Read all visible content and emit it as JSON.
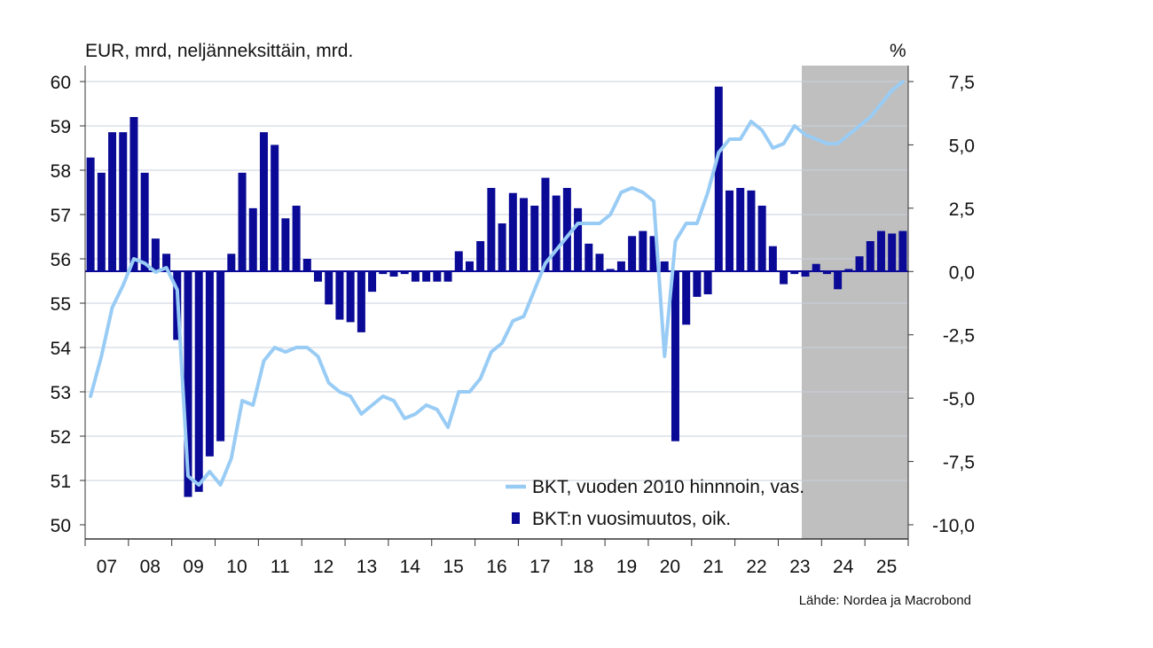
{
  "chart_data": {
    "type": "bar+line",
    "title": "",
    "left_axis_label": "EUR, mrd, neljänneksittäin, mrd.",
    "right_axis_label": "%",
    "left_ylim": [
      50,
      60
    ],
    "left_ticks": [
      "50",
      "51",
      "52",
      "53",
      "54",
      "55",
      "56",
      "57",
      "58",
      "59",
      "60"
    ],
    "right_ylim": [
      -10.0,
      7.5
    ],
    "right_ticks": [
      "-10,0",
      "-7,5",
      "-5,0",
      "-2,5",
      "0,0",
      "2,5",
      "5,0",
      "7,5"
    ],
    "x_labels": [
      "07",
      "08",
      "09",
      "10",
      "11",
      "12",
      "13",
      "14",
      "15",
      "16",
      "17",
      "18",
      "19",
      "20",
      "21",
      "22",
      "23",
      "24",
      "25"
    ],
    "forecast_shading": {
      "from": "2023Q1",
      "to": "2025Q4",
      "color": "#bfbfbf"
    },
    "quarters": [
      "2007Q1",
      "2007Q2",
      "2007Q3",
      "2007Q4",
      "2008Q1",
      "2008Q2",
      "2008Q3",
      "2008Q4",
      "2009Q1",
      "2009Q2",
      "2009Q3",
      "2009Q4",
      "2010Q1",
      "2010Q2",
      "2010Q3",
      "2010Q4",
      "2011Q1",
      "2011Q2",
      "2011Q3",
      "2011Q4",
      "2012Q1",
      "2012Q2",
      "2012Q3",
      "2012Q4",
      "2013Q1",
      "2013Q2",
      "2013Q3",
      "2013Q4",
      "2014Q1",
      "2014Q2",
      "2014Q3",
      "2014Q4",
      "2015Q1",
      "2015Q2",
      "2015Q3",
      "2015Q4",
      "2016Q1",
      "2016Q2",
      "2016Q3",
      "2016Q4",
      "2017Q1",
      "2017Q2",
      "2017Q3",
      "2017Q4",
      "2018Q1",
      "2018Q2",
      "2018Q3",
      "2018Q4",
      "2019Q1",
      "2019Q2",
      "2019Q3",
      "2019Q4",
      "2020Q1",
      "2020Q2",
      "2020Q3",
      "2020Q4",
      "2021Q1",
      "2021Q2",
      "2021Q3",
      "2021Q4",
      "2022Q1",
      "2022Q2",
      "2022Q3",
      "2022Q4",
      "2023Q1",
      "2023Q2",
      "2023Q3",
      "2023Q4",
      "2024Q1",
      "2024Q2",
      "2024Q3",
      "2024Q4",
      "2025Q1",
      "2025Q2",
      "2025Q3",
      "2025Q4"
    ],
    "series": [
      {
        "name": "BKT, vuoden 2010 hinnnoin, vas.",
        "type": "line",
        "axis": "left",
        "color": "#99ccf5",
        "values": [
          52.9,
          53.8,
          54.9,
          55.4,
          56.0,
          55.9,
          55.7,
          55.8,
          55.3,
          51.1,
          50.9,
          51.2,
          50.9,
          51.5,
          52.8,
          52.7,
          53.7,
          54.0,
          53.9,
          54.0,
          54.0,
          53.8,
          53.2,
          53.0,
          52.9,
          52.5,
          52.7,
          52.9,
          52.8,
          52.4,
          52.5,
          52.7,
          52.6,
          52.2,
          53.0,
          53.0,
          53.3,
          53.9,
          54.1,
          54.6,
          54.7,
          55.3,
          55.9,
          56.2,
          56.5,
          56.8,
          56.8,
          56.8,
          57.0,
          57.5,
          57.6,
          57.5,
          57.3,
          53.8,
          56.4,
          56.8,
          56.8,
          57.5,
          58.4,
          58.7,
          58.7,
          59.1,
          58.9,
          58.5,
          58.6,
          59.0,
          58.8,
          58.7,
          58.6,
          58.6,
          58.8,
          59.0,
          59.2,
          59.5,
          59.8,
          60.0
        ]
      },
      {
        "name": "BKT:n vuosimuutos, oik.",
        "type": "bar",
        "axis": "right",
        "color": "#0a0a96",
        "values": [
          4.5,
          3.9,
          5.5,
          5.5,
          6.1,
          3.9,
          1.3,
          0.7,
          -2.7,
          -8.9,
          -8.7,
          -7.3,
          -6.7,
          0.7,
          3.9,
          2.5,
          5.5,
          5.0,
          2.1,
          2.6,
          0.5,
          -0.4,
          -1.3,
          -1.9,
          -2.0,
          -2.4,
          -0.8,
          -0.1,
          -0.2,
          -0.1,
          -0.4,
          -0.4,
          -0.4,
          -0.4,
          0.8,
          0.4,
          1.2,
          3.3,
          1.9,
          3.1,
          2.9,
          2.6,
          3.7,
          3.0,
          3.3,
          2.5,
          1.1,
          0.7,
          0.1,
          0.4,
          1.4,
          1.6,
          1.4,
          0.4,
          -6.7,
          -2.1,
          -1.0,
          -0.9,
          7.3,
          3.2,
          3.3,
          3.2,
          2.6,
          1.0,
          -0.5,
          -0.1,
          -0.2,
          0.3,
          -0.1,
          -0.7,
          0.1,
          0.6,
          1.2,
          1.6,
          1.5,
          1.6
        ]
      }
    ],
    "legend_position": "bottom-right",
    "source": "Lähde: Nordea ja Macrobond"
  }
}
